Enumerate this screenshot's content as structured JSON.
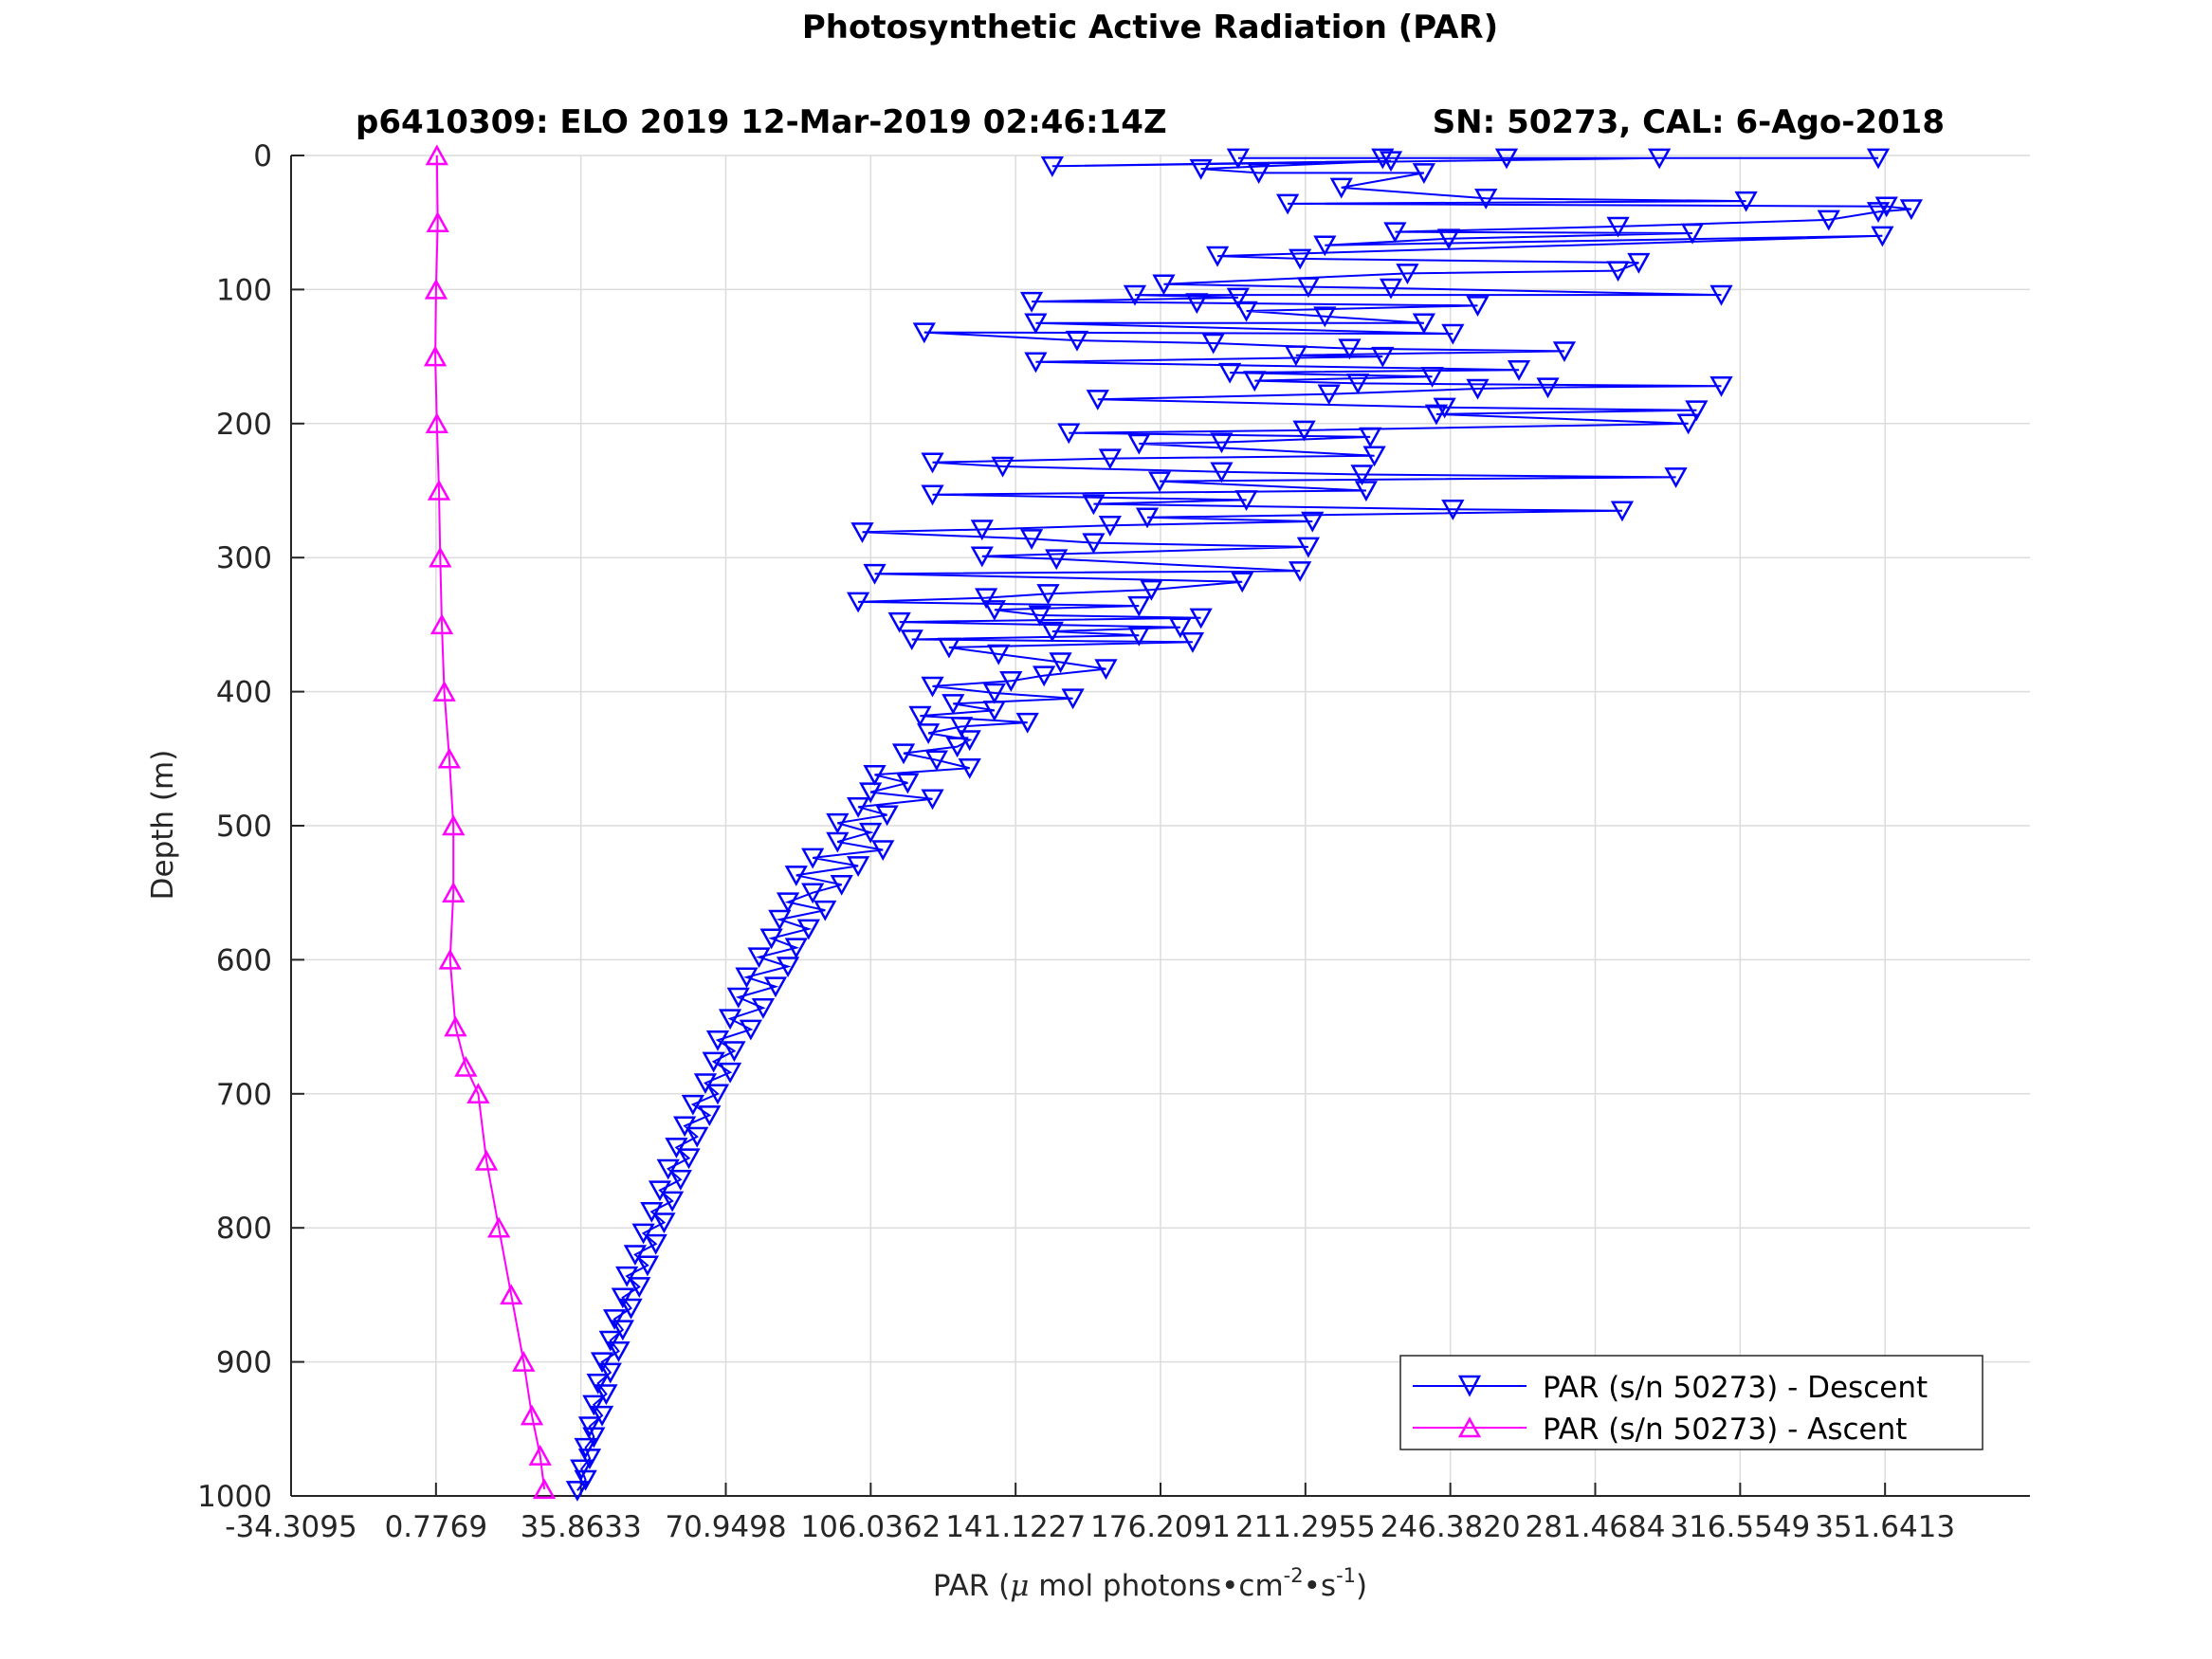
{
  "chart_data": {
    "type": "scatter",
    "title": "Photosynthetic Active Radiation (PAR)",
    "subtitle_left": "p6410309: ELO 2019 12-Mar-2019 02:46:14Z",
    "subtitle_right": "SN: 50273, CAL: 6-Ago-2018",
    "xlabel_prefix": "PAR (",
    "xlabel_mu": "μ",
    "xlabel_mid": " mol photons•cm",
    "xlabel_exp1": "-2",
    "xlabel_mid2": "•s",
    "xlabel_exp2": "-1",
    "xlabel_suffix": ")",
    "ylabel": "Depth (m)",
    "xlim": [
      -34.3095,
      386.7277
    ],
    "ylim": [
      0,
      1000
    ],
    "y_reversed": true,
    "grid": true,
    "legend_position": "bottom-right",
    "x_ticks": [
      -34.3095,
      0.7769,
      35.8633,
      70.9498,
      106.0362,
      141.1227,
      176.2091,
      211.2955,
      246.382,
      281.4684,
      316.5549,
      351.6413
    ],
    "x_tick_labels": [
      "-34.3095",
      "0.7769",
      "35.8633",
      "70.9498",
      "106.0362",
      "141.1227",
      "176.2091",
      "211.2955",
      "246.3820",
      "281.4684",
      "316.5549",
      "351.6413"
    ],
    "y_ticks": [
      0,
      100,
      200,
      300,
      400,
      500,
      600,
      700,
      800,
      900,
      1000
    ],
    "y_tick_labels": [
      "0",
      "100",
      "200",
      "300",
      "400",
      "500",
      "600",
      "700",
      "800",
      "900",
      "1000"
    ],
    "series": [
      {
        "name": "PAR (s/n 50273) - Descent",
        "color": "#0000ff",
        "marker": "triangle-down",
        "points": [
          [
            230,
            2
          ],
          [
            350,
            2
          ],
          [
            195,
            2
          ],
          [
            260,
            2
          ],
          [
            297,
            2
          ],
          [
            150,
            8
          ],
          [
            232,
            4
          ],
          [
            186,
            10
          ],
          [
            200,
            13
          ],
          [
            240,
            13
          ],
          [
            220,
            24
          ],
          [
            255,
            32
          ],
          [
            318,
            34
          ],
          [
            207,
            36
          ],
          [
            352,
            38
          ],
          [
            358,
            40
          ],
          [
            350,
            42
          ],
          [
            338,
            48
          ],
          [
            287,
            53
          ],
          [
            233,
            57
          ],
          [
            305,
            58
          ],
          [
            246,
            62
          ],
          [
            216,
            67
          ],
          [
            351,
            60
          ],
          [
            190,
            75
          ],
          [
            210,
            77
          ],
          [
            292,
            80
          ],
          [
            287,
            86
          ],
          [
            236,
            88
          ],
          [
            177,
            96
          ],
          [
            212,
            98
          ],
          [
            232,
            99
          ],
          [
            312,
            104
          ],
          [
            170,
            104
          ],
          [
            195,
            106
          ],
          [
            145,
            109
          ],
          [
            185,
            110
          ],
          [
            253,
            112
          ],
          [
            197,
            116
          ],
          [
            216,
            120
          ],
          [
            240,
            125
          ],
          [
            146,
            125
          ],
          [
            247,
            133
          ],
          [
            119,
            132
          ],
          [
            156,
            138
          ],
          [
            189,
            140
          ],
          [
            222,
            144
          ],
          [
            274,
            146
          ],
          [
            209,
            149
          ],
          [
            230,
            150
          ],
          [
            146,
            154
          ],
          [
            263,
            160
          ],
          [
            193,
            162
          ],
          [
            242,
            165
          ],
          [
            199,
            168
          ],
          [
            224,
            170
          ],
          [
            312,
            172
          ],
          [
            270,
            173
          ],
          [
            253,
            174
          ],
          [
            217,
            178
          ],
          [
            161,
            182
          ],
          [
            245,
            188
          ],
          [
            306,
            190
          ],
          [
            243,
            193
          ],
          [
            304,
            200
          ],
          [
            211,
            205
          ],
          [
            154,
            207
          ],
          [
            227,
            210
          ],
          [
            191,
            214
          ],
          [
            171,
            215
          ],
          [
            228,
            224
          ],
          [
            164,
            226
          ],
          [
            121,
            229
          ],
          [
            138,
            232
          ],
          [
            191,
            236
          ],
          [
            225,
            238
          ],
          [
            301,
            240
          ],
          [
            176,
            243
          ],
          [
            226,
            250
          ],
          [
            121,
            253
          ],
          [
            197,
            257
          ],
          [
            160,
            260
          ],
          [
            247,
            264
          ],
          [
            288,
            265
          ],
          [
            173,
            270
          ],
          [
            213,
            273
          ],
          [
            164,
            276
          ],
          [
            133,
            279
          ],
          [
            104,
            281
          ],
          [
            145,
            286
          ],
          [
            160,
            289
          ],
          [
            212,
            292
          ],
          [
            133,
            299
          ],
          [
            151,
            301
          ],
          [
            210,
            310
          ],
          [
            107,
            312
          ],
          [
            196,
            318
          ],
          [
            174,
            324
          ],
          [
            149,
            327
          ],
          [
            134,
            330
          ],
          [
            103,
            333
          ],
          [
            171,
            336
          ],
          [
            136,
            339
          ],
          [
            147,
            343
          ],
          [
            186,
            345
          ],
          [
            113,
            348
          ],
          [
            181,
            352
          ],
          [
            150,
            355
          ],
          [
            171,
            358
          ],
          [
            116,
            361
          ],
          [
            184,
            363
          ],
          [
            125,
            367
          ],
          [
            137,
            372
          ],
          [
            152,
            378
          ],
          [
            163,
            383
          ],
          [
            148,
            388
          ],
          [
            140,
            392
          ],
          [
            121,
            396
          ],
          [
            136,
            401
          ],
          [
            155,
            405
          ],
          [
            126,
            409
          ],
          [
            136,
            414
          ],
          [
            118,
            418
          ],
          [
            144,
            423
          ],
          [
            128,
            426
          ],
          [
            120,
            431
          ],
          [
            130,
            436
          ],
          [
            127,
            441
          ],
          [
            114,
            446
          ],
          [
            122,
            451
          ],
          [
            130,
            457
          ],
          [
            107,
            462
          ],
          [
            115,
            468
          ],
          [
            106,
            475
          ],
          [
            121,
            480
          ],
          [
            103,
            486
          ],
          [
            110,
            492
          ],
          [
            98,
            498
          ],
          [
            106,
            505
          ],
          [
            98,
            512
          ],
          [
            109,
            518
          ],
          [
            92,
            524
          ],
          [
            103,
            530
          ],
          [
            88,
            537
          ],
          [
            99,
            544
          ],
          [
            92,
            550
          ],
          [
            86,
            557
          ],
          [
            95,
            563
          ],
          [
            84,
            570
          ],
          [
            91,
            577
          ],
          [
            82,
            584
          ],
          [
            88,
            591
          ],
          [
            79,
            598
          ],
          [
            86,
            605
          ],
          [
            76,
            613
          ],
          [
            83,
            620
          ],
          [
            74,
            628
          ],
          [
            80,
            636
          ],
          [
            72,
            644
          ],
          [
            77,
            652
          ],
          [
            69,
            660
          ],
          [
            73,
            668
          ],
          [
            68,
            676
          ],
          [
            72,
            684
          ],
          [
            66,
            692
          ],
          [
            69,
            700
          ],
          [
            63,
            708
          ],
          [
            67,
            716
          ],
          [
            61,
            724
          ],
          [
            64,
            732
          ],
          [
            59,
            740
          ],
          [
            62,
            748
          ],
          [
            57,
            756
          ],
          [
            60,
            764
          ],
          [
            55,
            772
          ],
          [
            58,
            780
          ],
          [
            53,
            788
          ],
          [
            56,
            796
          ],
          [
            51,
            804
          ],
          [
            54,
            812
          ],
          [
            49,
            820
          ],
          [
            52,
            828
          ],
          [
            47,
            836
          ],
          [
            50,
            844
          ],
          [
            46,
            852
          ],
          [
            48,
            860
          ],
          [
            44,
            868
          ],
          [
            46,
            876
          ],
          [
            43,
            884
          ],
          [
            45,
            892
          ],
          [
            41,
            900
          ],
          [
            43,
            908
          ],
          [
            40,
            916
          ],
          [
            42,
            924
          ],
          [
            39,
            932
          ],
          [
            41,
            940
          ],
          [
            38,
            948
          ],
          [
            39,
            956
          ],
          [
            37,
            964
          ],
          [
            38,
            972
          ],
          [
            36,
            980
          ],
          [
            37,
            988
          ],
          [
            35,
            996
          ]
        ]
      },
      {
        "name": "PAR (s/n 50273) - Ascent",
        "color": "#ff00ff",
        "marker": "triangle-up",
        "points": [
          [
            1,
            0
          ],
          [
            1.2,
            50
          ],
          [
            0.8,
            100
          ],
          [
            0.6,
            150
          ],
          [
            1,
            200
          ],
          [
            1.5,
            250
          ],
          [
            1.8,
            300
          ],
          [
            2.2,
            350
          ],
          [
            2.8,
            400
          ],
          [
            4,
            450
          ],
          [
            5,
            500
          ],
          [
            5,
            550
          ],
          [
            4.2,
            600
          ],
          [
            5.5,
            650
          ],
          [
            8,
            680
          ],
          [
            11,
            700
          ],
          [
            13,
            750
          ],
          [
            16,
            800
          ],
          [
            19,
            850
          ],
          [
            22,
            900
          ],
          [
            24,
            940
          ],
          [
            26,
            970
          ],
          [
            27,
            995
          ]
        ]
      }
    ]
  }
}
